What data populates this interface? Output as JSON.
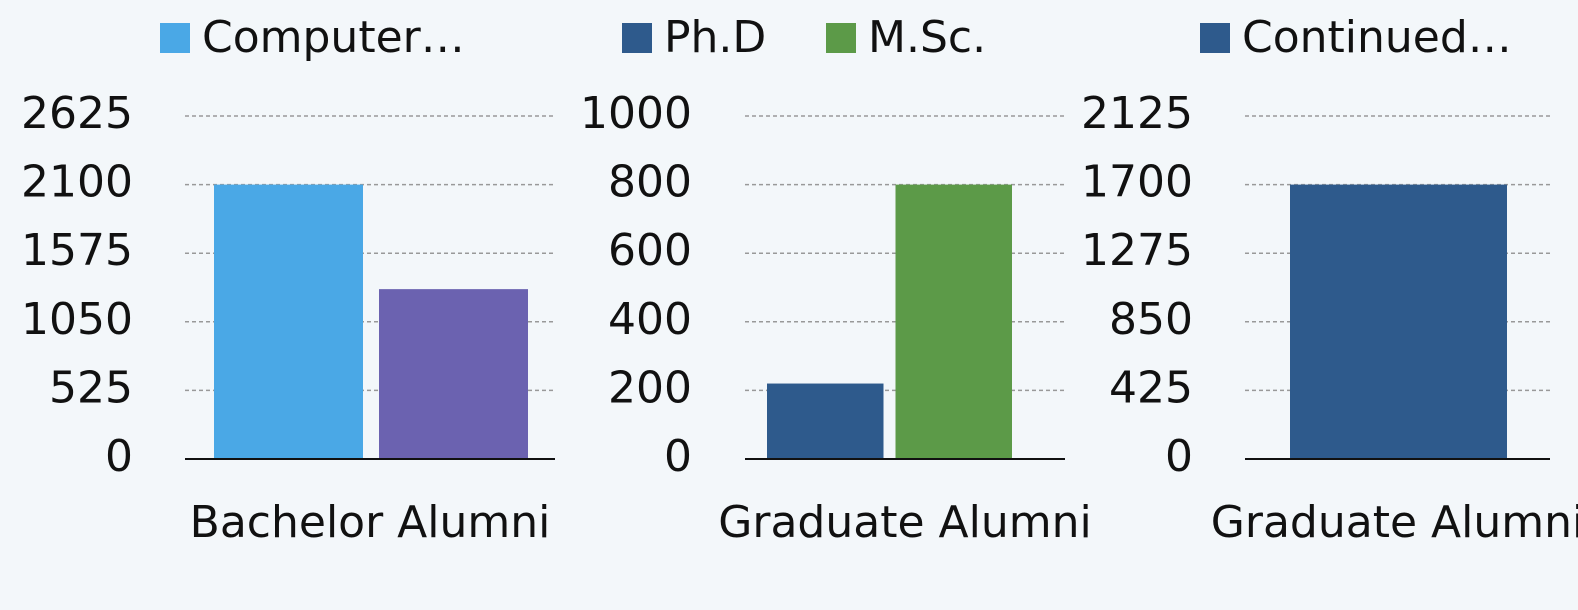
{
  "chart_data": [
    {
      "type": "bar",
      "categories": [
        "Bachelor Alumni"
      ],
      "ylim": [
        0,
        2625
      ],
      "yticks": [
        0,
        525,
        1050,
        1575,
        2100,
        2625
      ],
      "grid": true,
      "series": [
        {
          "name": "Computer…",
          "color": "#4aa8e6",
          "values": [
            2100
          ]
        },
        {
          "color": "#6b62b0",
          "values": [
            1300
          ]
        }
      ]
    },
    {
      "type": "bar",
      "categories": [
        "Graduate Alumni"
      ],
      "ylim": [
        0,
        1000
      ],
      "yticks": [
        0,
        200,
        400,
        600,
        800,
        1000
      ],
      "grid": true,
      "series": [
        {
          "name": "Ph.D",
          "color": "#2e5a8c",
          "values": [
            220
          ]
        },
        {
          "name": "M.Sc.",
          "color": "#5c9a48",
          "values": [
            800
          ]
        }
      ]
    },
    {
      "type": "bar",
      "categories": [
        "Graduate Alumni"
      ],
      "ylim": [
        0,
        2125
      ],
      "yticks": [
        0,
        425,
        850,
        1275,
        1700,
        2125
      ],
      "grid": true,
      "series": [
        {
          "name": "Continued…",
          "color": "#2e5a8c",
          "values": [
            1700
          ]
        }
      ]
    }
  ]
}
